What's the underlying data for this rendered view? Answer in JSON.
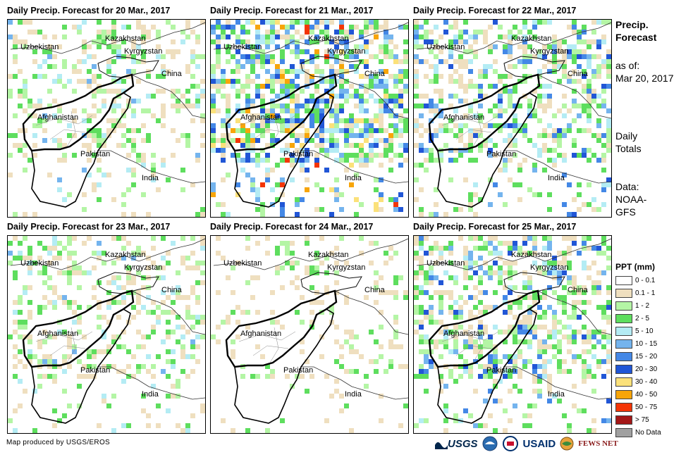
{
  "panels": [
    {
      "title": "Daily Precip. Forecast for 20 Mar., 2017",
      "level": "light"
    },
    {
      "title": "Daily Precip. Forecast for 21 Mar., 2017",
      "level": "heavy"
    },
    {
      "title": "Daily Precip. Forecast for 22 Mar., 2017",
      "level": "moderate"
    },
    {
      "title": "Daily Precip. Forecast for 23 Mar., 2017",
      "level": "light"
    },
    {
      "title": "Daily Precip. Forecast for 24 Mar., 2017",
      "level": "minimal"
    },
    {
      "title": "Daily Precip. Forecast for 25 Mar., 2017",
      "level": "moderate"
    }
  ],
  "country_labels": {
    "kazakhstan": "Kazakhstan",
    "uzbekistan": "Uzbekistan",
    "kyrgyzstan": "Kyrgyzstan",
    "china": "China",
    "afghanistan": "Afghanistan",
    "pakistan": "Pakistan",
    "india": "India"
  },
  "sidebar": {
    "title": "Precip. Forecast",
    "asof_label": "as of:",
    "asof_date": "Mar 20, 2017",
    "totals": "Daily Totals",
    "source": "Data: NOAA-GFS"
  },
  "legend": {
    "title": "PPT (mm)",
    "items": [
      {
        "label": "0 - 0.1",
        "color": "#ffffff"
      },
      {
        "label": "0.1 - 1",
        "color": "#efdfbf"
      },
      {
        "label": "1 - 2",
        "color": "#b4f5a5"
      },
      {
        "label": "2 - 5",
        "color": "#5ede5e"
      },
      {
        "label": "5 - 10",
        "color": "#b4ecf4"
      },
      {
        "label": "10 - 15",
        "color": "#74b4ee"
      },
      {
        "label": "15 - 20",
        "color": "#4488e6"
      },
      {
        "label": "20 - 30",
        "color": "#2156d6"
      },
      {
        "label": "30 - 40",
        "color": "#fbe17a"
      },
      {
        "label": "40 - 50",
        "color": "#f7a50a"
      },
      {
        "label": "50 - 75",
        "color": "#f43506"
      },
      {
        "label": "> 75",
        "color": "#a41818"
      },
      {
        "label": "No Data",
        "color": "#a0a0a0"
      }
    ]
  },
  "credit": "Map produced by USGS/EROS",
  "logos": {
    "usgs": "USGS",
    "usaid": "USAID",
    "fewsnet": "FEWS NET"
  }
}
